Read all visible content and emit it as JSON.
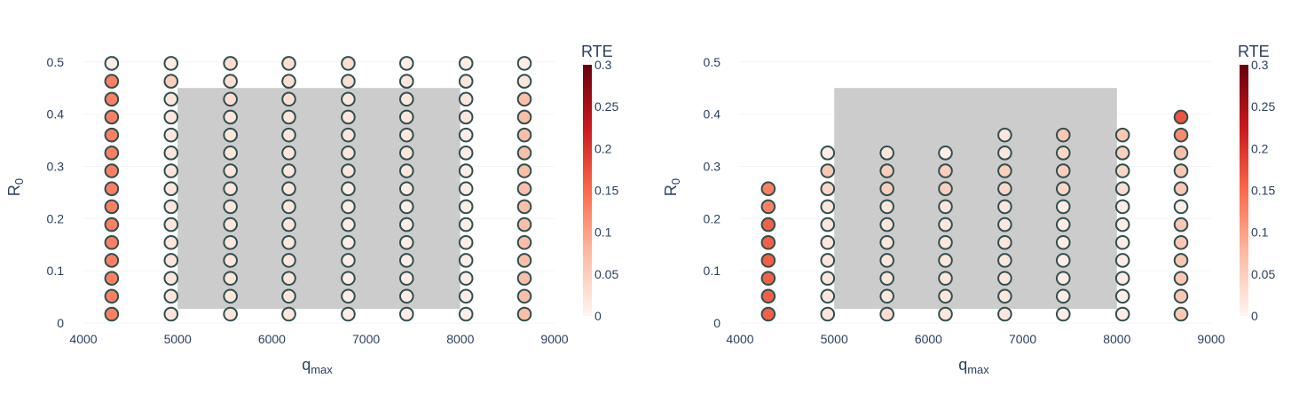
{
  "chart_data": [
    {
      "type": "scatter",
      "xlabel": "q",
      "xlabel_sub": "max",
      "ylabel": "R",
      "ylabel_sub": "0",
      "xlim": [
        4000,
        9000
      ],
      "ylim": [
        0,
        0.52
      ],
      "xticks": [
        "4000",
        "5000",
        "6000",
        "7000",
        "8000",
        "9000"
      ],
      "yticks": [
        "0",
        "0.1",
        "0.2",
        "0.3",
        "0.4",
        "0.5"
      ],
      "grid": false,
      "region": {
        "x0": 5000,
        "x1": 8000,
        "y0": 0.027,
        "y1": 0.45
      },
      "colorbar": {
        "title": "RTE",
        "range": [
          0,
          0.3
        ],
        "ticks": [
          "0",
          "0.05",
          "0.1",
          "0.15",
          "0.2",
          "0.25",
          "0.3"
        ],
        "colors": [
          "#fff5f0",
          "#fcbba1",
          "#fb6a4a",
          "#cb181d",
          "#67000d"
        ]
      },
      "columns": [
        {
          "x": 4300,
          "y0": 0.017,
          "step": 0.0343,
          "rte": [
            0.13,
            0.13,
            0.13,
            0.13,
            0.13,
            0.13,
            0.13,
            0.13,
            0.13,
            0.13,
            0.13,
            0.13,
            0.13,
            0.13,
            0.01
          ]
        },
        {
          "x": 4930,
          "y0": 0.017,
          "step": 0.0343,
          "rte": [
            0.02,
            0.02,
            0.02,
            0.02,
            0.02,
            0.02,
            0.02,
            0.02,
            0.02,
            0.02,
            0.02,
            0.02,
            0.02,
            0.05,
            0.01
          ]
        },
        {
          "x": 5560,
          "y0": 0.017,
          "step": 0.0343,
          "rte": [
            0.02,
            0.02,
            0.02,
            0.02,
            0.02,
            0.02,
            0.02,
            0.02,
            0.02,
            0.02,
            0.02,
            0.02,
            0.03,
            0.03,
            0.03
          ]
        },
        {
          "x": 6180,
          "y0": 0.017,
          "step": 0.0343,
          "rte": [
            0.02,
            0.02,
            0.02,
            0.02,
            0.02,
            0.02,
            0.02,
            0.02,
            0.02,
            0.02,
            0.02,
            0.02,
            0.03,
            0.03,
            0.03
          ]
        },
        {
          "x": 6810,
          "y0": 0.017,
          "step": 0.0343,
          "rte": [
            0.01,
            0.01,
            0.01,
            0.01,
            0.01,
            0.01,
            0.01,
            0.01,
            0.02,
            0.02,
            0.02,
            0.02,
            0.02,
            0.03,
            0.03
          ]
        },
        {
          "x": 7430,
          "y0": 0.017,
          "step": 0.0343,
          "rte": [
            0.01,
            0.01,
            0.01,
            0.01,
            0.01,
            0.01,
            0.01,
            0.01,
            0.02,
            0.02,
            0.02,
            0.02,
            0.02,
            0.02,
            0.01
          ]
        },
        {
          "x": 8060,
          "y0": 0.017,
          "step": 0.0343,
          "rte": [
            0.01,
            0.01,
            0.01,
            0.01,
            0.01,
            0.01,
            0.01,
            0.01,
            0.01,
            0.01,
            0.01,
            0.02,
            0.02,
            0.02,
            0.01
          ]
        },
        {
          "x": 8680,
          "y0": 0.017,
          "step": 0.0343,
          "rte": [
            0.07,
            0.07,
            0.07,
            0.07,
            0.07,
            0.07,
            0.07,
            0.07,
            0.07,
            0.07,
            0.07,
            0.07,
            0.07,
            0.02,
            0.01
          ]
        }
      ]
    },
    {
      "type": "scatter",
      "xlabel": "q",
      "xlabel_sub": "max",
      "ylabel": "R",
      "ylabel_sub": "0",
      "xlim": [
        4000,
        9000
      ],
      "ylim": [
        0,
        0.52
      ],
      "xticks": [
        "4000",
        "5000",
        "6000",
        "7000",
        "8000",
        "9000"
      ],
      "yticks": [
        "0",
        "0.1",
        "0.2",
        "0.3",
        "0.4",
        "0.5"
      ],
      "grid": false,
      "region": {
        "x0": 5000,
        "x1": 8000,
        "y0": 0.027,
        "y1": 0.45
      },
      "colorbar": {
        "title": "RTE",
        "range": [
          0,
          0.3
        ],
        "ticks": [
          "0",
          "0.05",
          "0.1",
          "0.15",
          "0.2",
          "0.25",
          "0.3"
        ],
        "colors": [
          "#fff5f0",
          "#fcbba1",
          "#fb6a4a",
          "#cb181d",
          "#67000d"
        ]
      },
      "columns": [
        {
          "x": 4300,
          "y0": 0.017,
          "step": 0.0343,
          "rte": [
            0.16,
            0.16,
            0.16,
            0.16,
            0.16,
            0.16,
            0.13,
            0.13
          ]
        },
        {
          "x": 4930,
          "y0": 0.017,
          "step": 0.0343,
          "rte": [
            0.02,
            0.02,
            0.02,
            0.02,
            0.02,
            0.02,
            0.02,
            0.04,
            0.06,
            0.01
          ]
        },
        {
          "x": 5560,
          "y0": 0.017,
          "step": 0.0343,
          "rte": [
            0.03,
            0.02,
            0.02,
            0.02,
            0.02,
            0.02,
            0.02,
            0.05,
            0.05,
            0.02
          ]
        },
        {
          "x": 6180,
          "y0": 0.017,
          "step": 0.0343,
          "rte": [
            0.02,
            0.02,
            0.02,
            0.02,
            0.02,
            0.02,
            0.02,
            0.05,
            0.05,
            0.01
          ]
        },
        {
          "x": 6810,
          "y0": 0.017,
          "step": 0.0343,
          "rte": [
            0.02,
            0.02,
            0.02,
            0.02,
            0.02,
            0.02,
            0.02,
            0.04,
            0.05,
            0.02,
            0.02
          ]
        },
        {
          "x": 7430,
          "y0": 0.017,
          "step": 0.0343,
          "rte": [
            0.01,
            0.01,
            0.01,
            0.01,
            0.01,
            0.01,
            0.01,
            0.04,
            0.05,
            0.04,
            0.06
          ]
        },
        {
          "x": 8060,
          "y0": 0.017,
          "step": 0.0343,
          "rte": [
            0.01,
            0.01,
            0.01,
            0.01,
            0.01,
            0.01,
            0.01,
            0.03,
            0.04,
            0.05,
            0.06
          ]
        },
        {
          "x": 8680,
          "y0": 0.017,
          "step": 0.0343,
          "rte": [
            0.06,
            0.06,
            0.06,
            0.06,
            0.06,
            0.06,
            0.01,
            0.06,
            0.06,
            0.07,
            0.12,
            0.17
          ]
        }
      ]
    }
  ]
}
